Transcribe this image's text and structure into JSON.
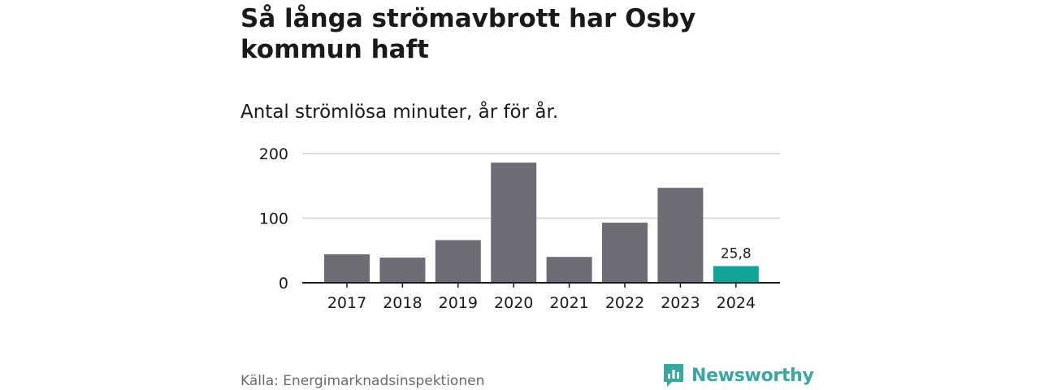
{
  "header": {
    "title": "Så långa strömavbrott har Osby kommun haft",
    "subtitle": "Antal strömlösa minuter, år för år."
  },
  "footer": {
    "source": "Källa: Energimarknadsinspektionen",
    "brand": "Newsworthy"
  },
  "colors": {
    "bar": "#6e6d74",
    "highlight": "#0fa59b",
    "grid": "#dddddd",
    "axis": "#1a1a1a",
    "brand": "#3aa8a0"
  },
  "chart_data": {
    "type": "bar",
    "title": "Så långa strömavbrott har Osby kommun haft",
    "subtitle": "Antal strömlösa minuter, år för år.",
    "categories": [
      "2017",
      "2018",
      "2019",
      "2020",
      "2021",
      "2022",
      "2023",
      "2024"
    ],
    "values": [
      44,
      39,
      66,
      186,
      40,
      93,
      147,
      25.8
    ],
    "highlight_index": 7,
    "highlight_label": "25,8",
    "ylim": [
      0,
      200
    ],
    "yticks": [
      0,
      100,
      200
    ],
    "xlabel": "",
    "ylabel": "",
    "grid": true
  }
}
